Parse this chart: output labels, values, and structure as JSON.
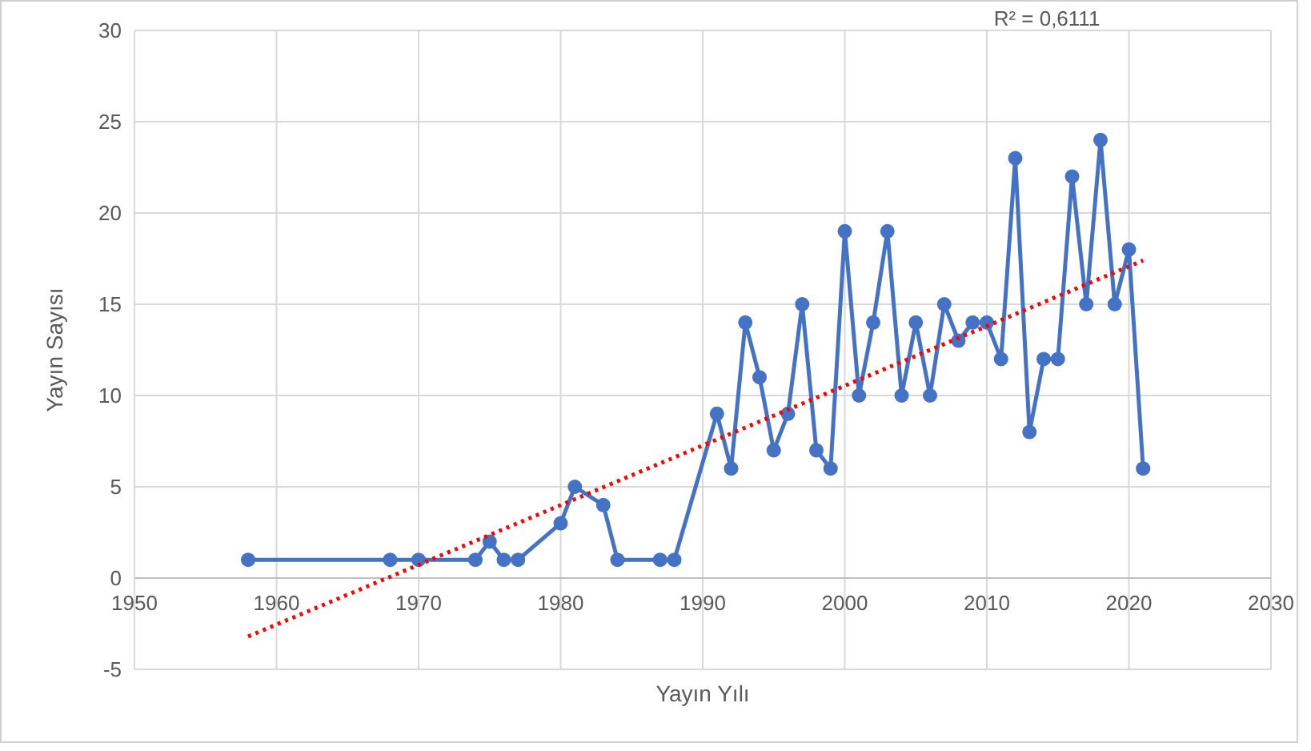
{
  "chart_data": {
    "type": "line",
    "xlabel": "Yayın Yılı",
    "ylabel": "Yayın Sayısı",
    "annotations": [
      "R² = 0,6111"
    ],
    "xlim": [
      1950,
      2030
    ],
    "xticks": [
      1950,
      1960,
      1970,
      1980,
      1990,
      2000,
      2010,
      2020,
      2030
    ],
    "ylim": [
      -5,
      30
    ],
    "yticks": [
      -5,
      0,
      5,
      10,
      15,
      20,
      25,
      30
    ],
    "grid": true,
    "series": [
      {
        "color": "#4472c4",
        "marker": "circle",
        "line_style": "solid",
        "x": [
          1958,
          1968,
          1970,
          1974,
          1975,
          1976,
          1977,
          1980,
          1981,
          1983,
          1984,
          1987,
          1988,
          1991,
          1992,
          1993,
          1994,
          1995,
          1996,
          1997,
          1998,
          1999,
          2000,
          2001,
          2002,
          2003,
          2004,
          2005,
          2006,
          2007,
          2008,
          2009,
          2010,
          2011,
          2012,
          2013,
          2014,
          2015,
          2016,
          2017,
          2018,
          2019,
          2020,
          2021
        ],
        "values": [
          1,
          1,
          1,
          1,
          2,
          1,
          1,
          3,
          5,
          4,
          1,
          1,
          1,
          9,
          6,
          14,
          11,
          7,
          9,
          15,
          7,
          6,
          19,
          10,
          14,
          19,
          10,
          14,
          10,
          15,
          13,
          14,
          14,
          12,
          23,
          8,
          12,
          12,
          22,
          15,
          24,
          15,
          18,
          6
        ]
      },
      {
        "type": "line",
        "color": "#ff0000",
        "marker": "none",
        "line_style": "dotted",
        "x": [
          1958,
          2021
        ],
        "values": [
          -3.2,
          17.4
        ]
      }
    ]
  }
}
